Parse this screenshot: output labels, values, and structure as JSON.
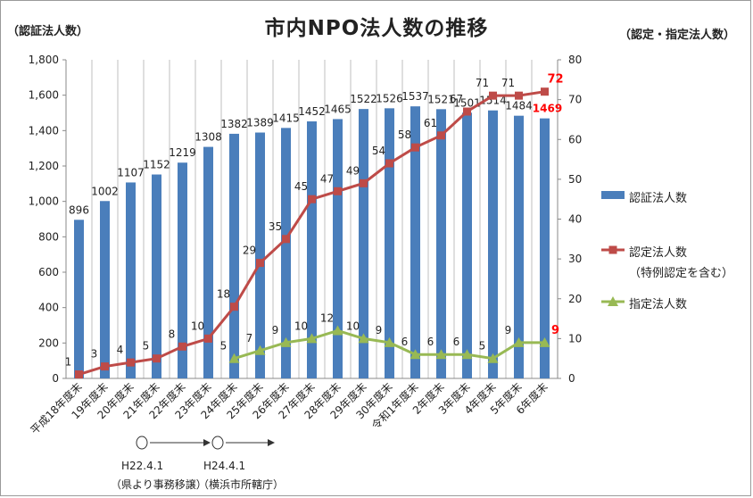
{
  "title": "市内NPO法人数の推移",
  "left_axis_unit": "（認証法人数）",
  "right_axis_unit": "（認定・指定法人数）",
  "legend": {
    "bar": "認証法人数",
    "line1": "認定法人数",
    "line1_note": "（特例認定を含む）",
    "line2": "指定法人数"
  },
  "footnotes": {
    "h22_date": "H22.4.1",
    "h22_note": "（県より事務移譲）",
    "h24_date": "H24.4.1",
    "h24_note": "（横浜市所轄庁）"
  },
  "colors": {
    "bar": "#4a7ebb",
    "line1": "#be4b48",
    "line2": "#98b954",
    "highlight": "#ff0000"
  },
  "chart_data": {
    "type": "bar",
    "categories": [
      "平成18年度末",
      "19年度末",
      "20年度末",
      "21年度末",
      "22年度末",
      "23年度末",
      "24年度末",
      "25年度末",
      "26年度末",
      "27年度末",
      "28年度末",
      "29年度末",
      "30年度末",
      "令和1年度末",
      "2年度末",
      "3年度末",
      "4年度末",
      "5年度末",
      "6年度末"
    ],
    "left_ylim": [
      0,
      1800
    ],
    "left_yticks": [
      "0",
      "200",
      "400",
      "600",
      "800",
      "1,000",
      "1,200",
      "1,400",
      "1,600",
      "1,800"
    ],
    "right_ylim": [
      0,
      80
    ],
    "right_yticks": [
      "0",
      "10",
      "20",
      "30",
      "40",
      "50",
      "60",
      "70",
      "80"
    ],
    "series": [
      {
        "name": "認証法人数",
        "type": "bar",
        "axis": "left",
        "values": [
          896,
          1002,
          1107,
          1152,
          1219,
          1308,
          1382,
          1389,
          1415,
          1452,
          1465,
          1522,
          1526,
          1537,
          1521,
          1501,
          1514,
          1484,
          1469
        ]
      },
      {
        "name": "認定法人数",
        "type": "line",
        "axis": "right",
        "values": [
          1,
          3,
          4,
          5,
          8,
          10,
          18,
          29,
          35,
          45,
          47,
          49,
          54,
          58,
          61,
          67,
          71,
          71,
          72
        ]
      },
      {
        "name": "指定法人数",
        "type": "line",
        "axis": "right",
        "values": [
          null,
          null,
          null,
          null,
          null,
          null,
          5,
          7,
          9,
          10,
          12,
          10,
          9,
          6,
          6,
          6,
          5,
          9,
          9
        ]
      }
    ],
    "highlighted_labels": [
      "72",
      "1469",
      "9"
    ],
    "grid": "vertical"
  }
}
